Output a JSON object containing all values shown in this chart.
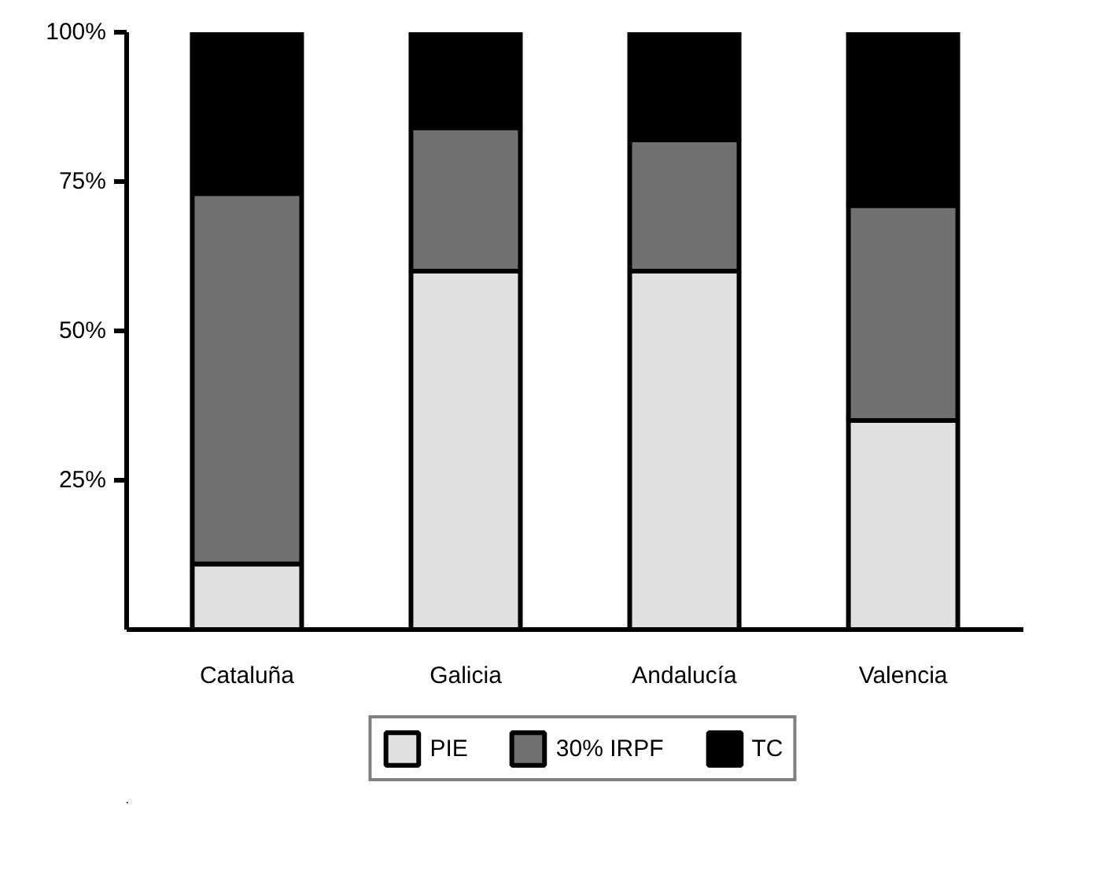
{
  "chart_data": {
    "type": "bar",
    "stacked": true,
    "categories": [
      "Cataluña",
      "Galicia",
      "Andalucía",
      "Valencia"
    ],
    "series": [
      {
        "name": "PIE",
        "color": "#e0e0e0",
        "values": [
          11,
          60,
          60,
          35
        ]
      },
      {
        "name": "30% IRPF",
        "color": "#707070",
        "values": [
          62,
          24,
          22,
          36
        ]
      },
      {
        "name": "TC",
        "color": "#000000",
        "values": [
          27,
          16,
          18,
          29
        ]
      }
    ],
    "ylim": [
      0,
      100
    ],
    "yticks": [
      {
        "value": 25,
        "label": "25%"
      },
      {
        "value": 50,
        "label": "50%"
      },
      {
        "value": 75,
        "label": "75%"
      },
      {
        "value": 100,
        "label": "100%"
      }
    ],
    "grid": false,
    "legend": "bottom"
  }
}
